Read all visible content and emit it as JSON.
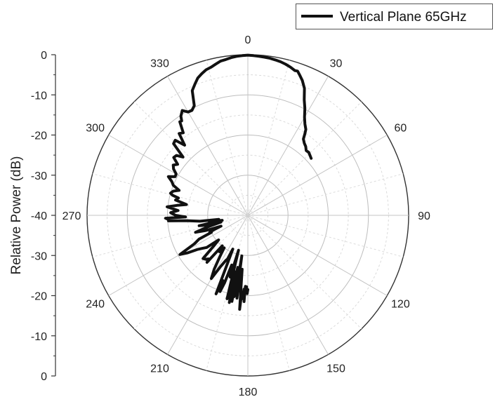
{
  "chart_data": {
    "type": "polar-line",
    "ylabel": "Relative Power (dB)",
    "radial_ticks": [
      "0",
      "-10",
      "-20",
      "-30",
      "-40",
      "-30",
      "-20",
      "-10",
      "0"
    ],
    "radial_range_db": [
      -40,
      0
    ],
    "angle_ticks": [
      "0",
      "30",
      "60",
      "90",
      "120",
      "150",
      "180",
      "210",
      "240",
      "270",
      "300",
      "330"
    ],
    "grid": true,
    "legend": {
      "position": "top-right"
    },
    "series": [
      {
        "name": "Vertical Plane 65GHz",
        "color": "#111111",
        "points": [
          [
            180,
            -21.5
          ],
          [
            180.5,
            -20.5
          ],
          [
            181,
            -22.2
          ],
          [
            181.5,
            -20.7
          ],
          [
            182,
            -22.3
          ],
          [
            182.5,
            -18.5
          ],
          [
            183,
            -21.6
          ],
          [
            183.5,
            -20.3
          ],
          [
            184,
            -19.2
          ],
          [
            184.5,
            -20.8
          ],
          [
            185,
            -16.5
          ],
          [
            185.5,
            -22.9
          ],
          [
            186,
            -26.5
          ],
          [
            186.5,
            -24.5
          ],
          [
            187,
            -26.0
          ],
          [
            187.5,
            -19.2
          ],
          [
            188,
            -22.9
          ],
          [
            188.5,
            -29.8
          ],
          [
            189,
            -20.5
          ],
          [
            189.5,
            -19.5
          ],
          [
            190,
            -25.3
          ],
          [
            190.5,
            -18.2
          ],
          [
            191,
            -26.8
          ],
          [
            191.5,
            -22.5
          ],
          [
            192,
            -17.8
          ],
          [
            192.5,
            -23.6
          ],
          [
            193,
            -25.6
          ],
          [
            193.5,
            -18.9
          ],
          [
            194,
            -18.6
          ],
          [
            195,
            -31.0
          ],
          [
            196,
            -24.0
          ],
          [
            197,
            -24.7
          ],
          [
            198,
            -27.0
          ],
          [
            199,
            -22.3
          ],
          [
            200,
            -19.8
          ],
          [
            201,
            -22.6
          ],
          [
            202,
            -18.9
          ],
          [
            203,
            -27.2
          ],
          [
            204,
            -30.8
          ],
          [
            205,
            -28.0
          ],
          [
            206,
            -27.5
          ],
          [
            208,
            -25.6
          ],
          [
            210,
            -21.8
          ],
          [
            212,
            -24.2
          ],
          [
            214,
            -27.4
          ],
          [
            216,
            -30.0
          ],
          [
            218,
            -28.5
          ],
          [
            220,
            -30.1
          ],
          [
            221,
            -24.5
          ],
          [
            222,
            -25.4
          ],
          [
            224,
            -24.8
          ],
          [
            226,
            -24.5
          ],
          [
            228,
            -28.5
          ],
          [
            230,
            -30.5
          ],
          [
            232,
            -27.0
          ],
          [
            234,
            -26.0
          ],
          [
            236,
            -24.8
          ],
          [
            238,
            -22.4
          ],
          [
            240,
            -20.5
          ],
          [
            242,
            -25.0
          ],
          [
            244,
            -26.5
          ],
          [
            245,
            -30.0
          ],
          [
            246,
            -29.6
          ],
          [
            247,
            -30.9
          ],
          [
            248,
            -32.8
          ],
          [
            250,
            -29.0
          ],
          [
            252,
            -26.3
          ],
          [
            254,
            -29.9
          ],
          [
            256,
            -33.1
          ],
          [
            257,
            -29.0
          ],
          [
            258,
            -27.6
          ],
          [
            259,
            -33.5
          ],
          [
            260,
            -30.8
          ],
          [
            261,
            -30.3
          ],
          [
            262,
            -32.7
          ],
          [
            263,
            -28.0
          ],
          [
            265,
            -24.7
          ],
          [
            266,
            -20.2
          ],
          [
            267,
            -20.2
          ],
          [
            268,
            -19.5
          ],
          [
            268.5,
            -24.5
          ],
          [
            270,
            -22.0
          ],
          [
            272,
            -20.8
          ],
          [
            274,
            -22.6
          ],
          [
            276,
            -19.8
          ],
          [
            278,
            -22.2
          ],
          [
            280,
            -24.5
          ],
          [
            282,
            -21.6
          ],
          [
            284,
            -22.2
          ],
          [
            285,
            -20.6
          ],
          [
            286,
            -20.0
          ],
          [
            288,
            -20.5
          ],
          [
            290,
            -21.8
          ],
          [
            292,
            -20.0
          ],
          [
            294,
            -19.3
          ],
          [
            296,
            -18.0
          ],
          [
            298,
            -19.5
          ],
          [
            300,
            -19.4
          ],
          [
            302,
            -18.2
          ],
          [
            304,
            -17.6
          ],
          [
            306,
            -18.4
          ],
          [
            308,
            -16.6
          ],
          [
            310,
            -16.8
          ],
          [
            312,
            -18.3
          ],
          [
            314,
            -14.3
          ],
          [
            316,
            -14.0
          ],
          [
            318,
            -16.5
          ],
          [
            320,
            -13.4
          ],
          [
            322,
            -13.9
          ],
          [
            324,
            -11.2
          ],
          [
            325,
            -11.3
          ],
          [
            326,
            -10.2
          ],
          [
            328,
            -9.2
          ],
          [
            330,
            -10.3
          ],
          [
            332,
            -10.4
          ],
          [
            334,
            -9.6
          ],
          [
            336,
            -6.0
          ],
          [
            338,
            -4.8
          ],
          [
            340,
            -3.6
          ],
          [
            342,
            -2.9
          ],
          [
            344,
            -2.3
          ],
          [
            346,
            -2.0
          ],
          [
            348,
            -1.5
          ],
          [
            350,
            -1.0
          ],
          [
            352,
            -0.8
          ],
          [
            354,
            -0.5
          ],
          [
            356,
            -0.3
          ],
          [
            358,
            -0.2
          ],
          [
            0,
            -0.1
          ],
          [
            2,
            -0.2
          ],
          [
            4,
            -0.3
          ],
          [
            6,
            -0.4
          ],
          [
            8,
            -0.5
          ],
          [
            10,
            -0.7
          ],
          [
            12,
            -0.9
          ],
          [
            14,
            -1.2
          ],
          [
            16,
            -1.6
          ],
          [
            18,
            -2.1
          ],
          [
            19,
            -2.0
          ],
          [
            20,
            -2.6
          ],
          [
            22,
            -3.8
          ],
          [
            24,
            -5.4
          ],
          [
            26,
            -8.0
          ],
          [
            28,
            -9.8
          ],
          [
            30,
            -11.8
          ],
          [
            32,
            -13.2
          ],
          [
            34,
            -14.2
          ],
          [
            35,
            -15.3
          ],
          [
            36,
            -16.5
          ],
          [
            38,
            -17.2
          ],
          [
            40,
            -17.6
          ],
          [
            42,
            -18.3
          ],
          [
            44,
            -18.2
          ],
          [
            46,
            -18.5
          ],
          [
            48,
            -18.8
          ]
        ]
      }
    ]
  }
}
